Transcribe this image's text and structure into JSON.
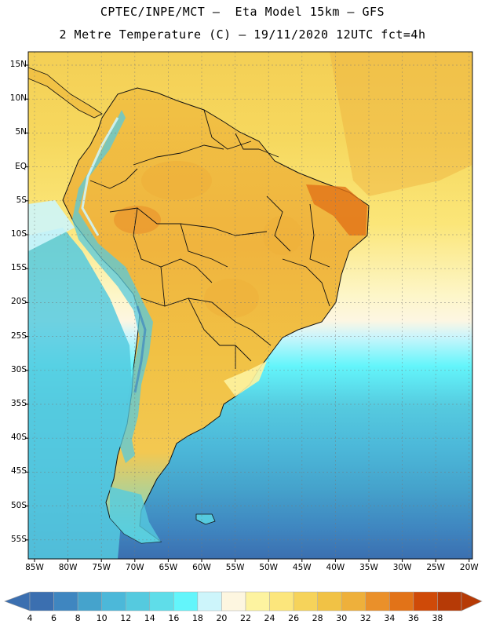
{
  "header": {
    "title_line1": "CPTEC/INPE/MCT –  Eta Model 15km – GFS",
    "title_line2": "2 Metre Temperature (C) – 19/11/2020 12UTC fct=4h"
  },
  "map": {
    "region": "South America",
    "lat_labels": [
      "15N",
      "10N",
      "5N",
      "EQ",
      "5S",
      "10S",
      "15S",
      "20S",
      "25S",
      "30S",
      "35S",
      "40S",
      "45S",
      "50S",
      "55S"
    ],
    "lon_labels": [
      "85W",
      "80W",
      "75W",
      "70W",
      "65W",
      "60W",
      "55W",
      "50W",
      "45W",
      "40W",
      "35W",
      "30W",
      "25W",
      "20W"
    ]
  },
  "colorbar": {
    "values": [
      "4",
      "6",
      "8",
      "10",
      "12",
      "14",
      "16",
      "18",
      "20",
      "22",
      "24",
      "26",
      "28",
      "30",
      "32",
      "34",
      "36",
      "38"
    ],
    "colors": [
      "#3b6fb0",
      "#3f86c0",
      "#45a3cc",
      "#4cb8d9",
      "#55cadf",
      "#5fdde9",
      "#63f5fb",
      "#cdf5fb",
      "#fdf6e0",
      "#fdf3a0",
      "#fce67c",
      "#f6d35a",
      "#f1c245",
      "#eeb03b",
      "#ea902a",
      "#e27318",
      "#cf4a08",
      "#b63a06"
    ],
    "unit": "C"
  }
}
